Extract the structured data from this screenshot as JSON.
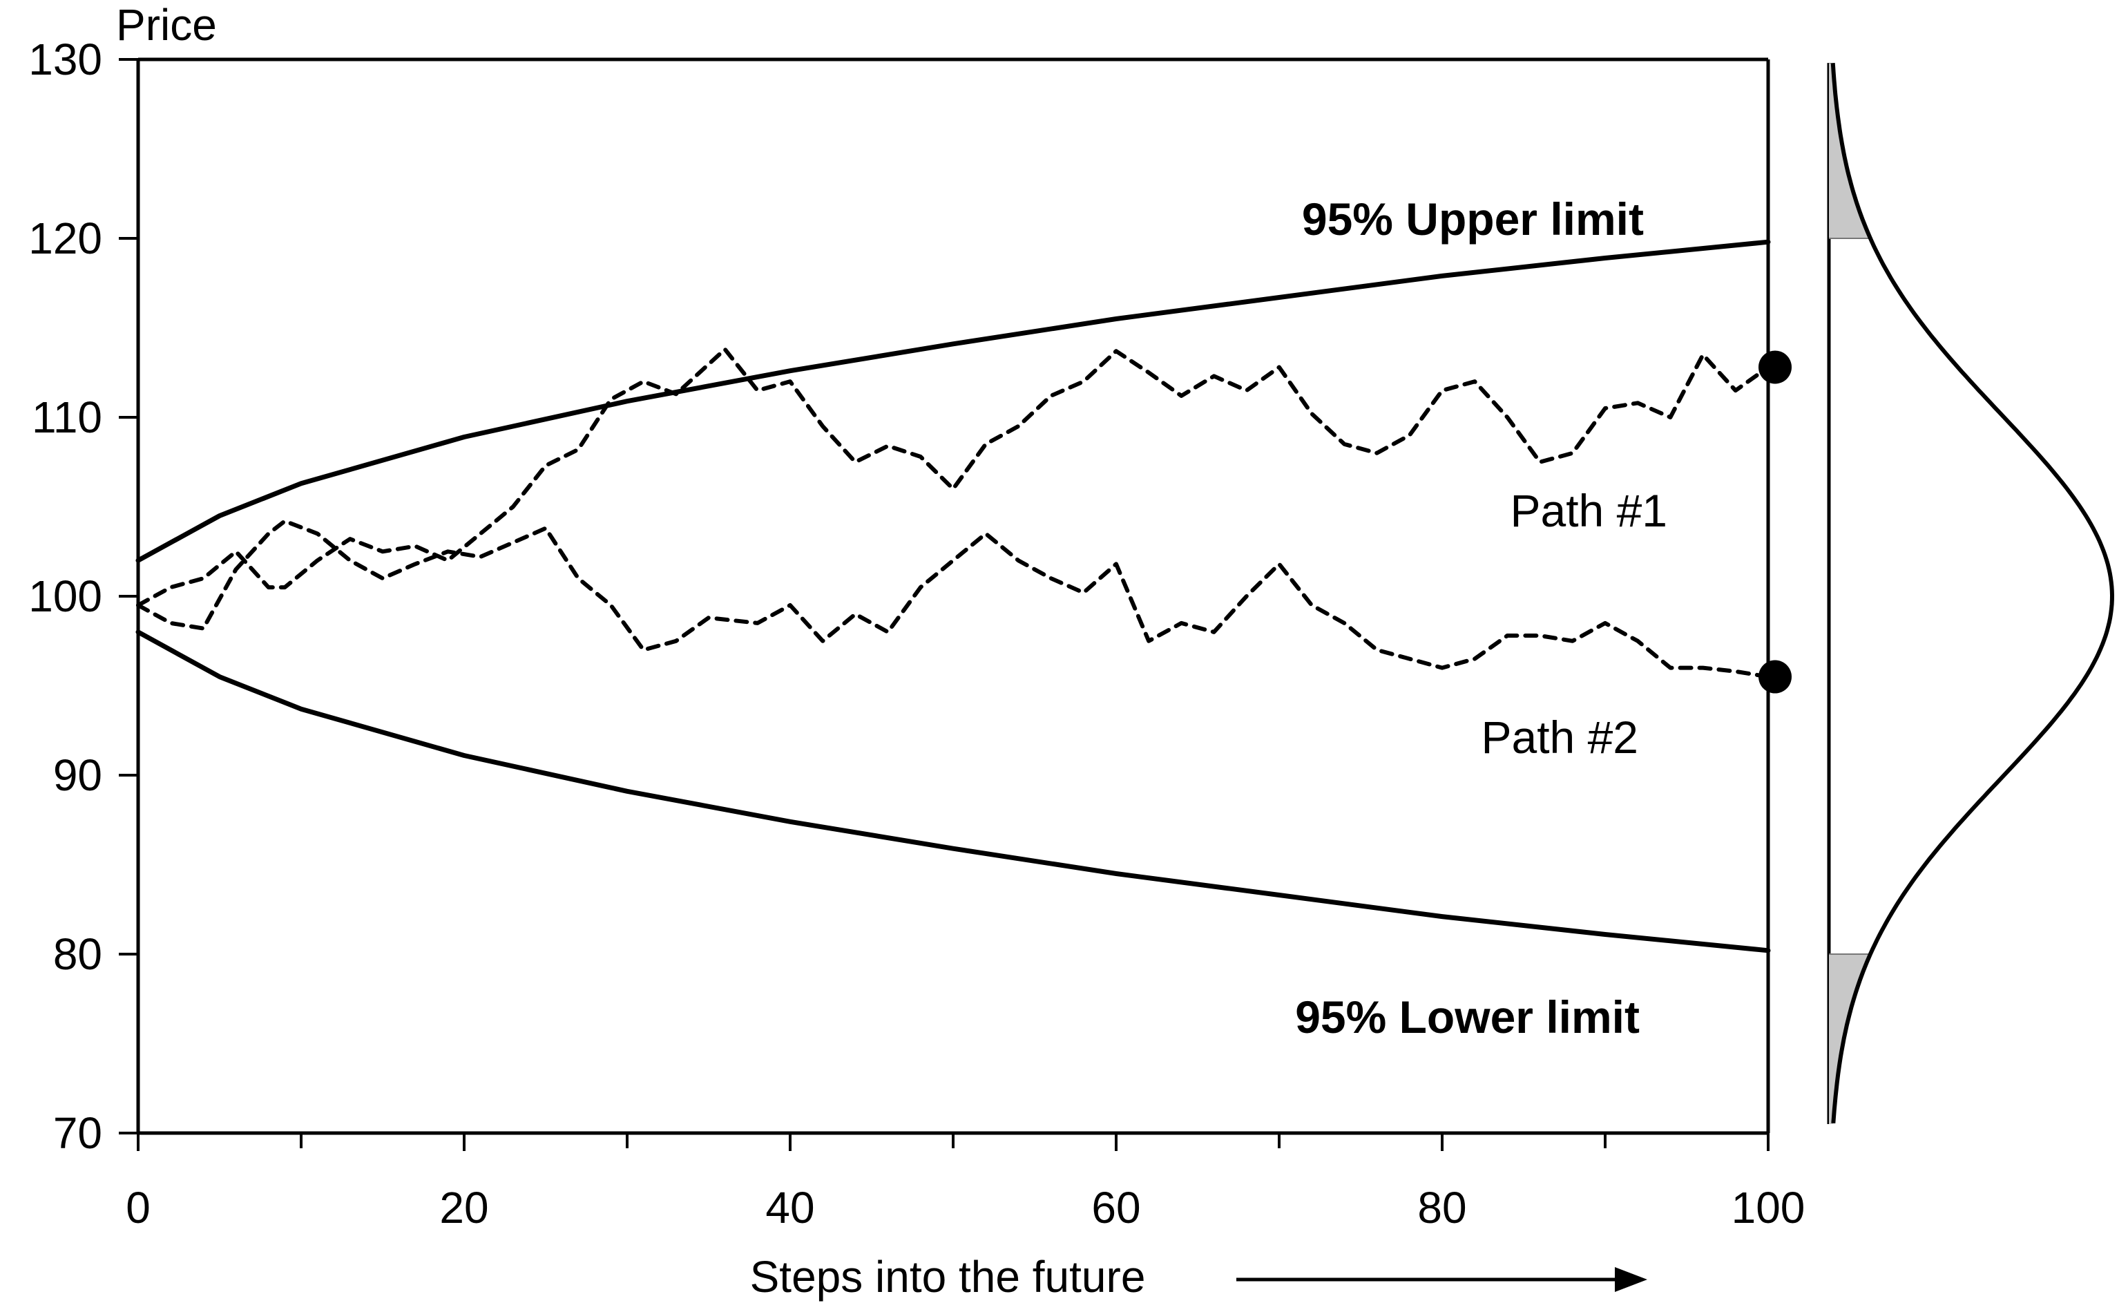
{
  "chart_data": {
    "type": "line",
    "xlabel": "Steps into the future",
    "ylabel": "Price",
    "xlim": [
      0,
      100
    ],
    "ylim": [
      70,
      130
    ],
    "x_ticks": [
      0,
      20,
      40,
      60,
      80,
      100
    ],
    "y_ticks": [
      70,
      80,
      90,
      100,
      110,
      120,
      130
    ],
    "x_tick_labels": [
      "0",
      "20",
      "40",
      "60",
      "80",
      "100"
    ],
    "y_tick_labels": [
      "70",
      "80",
      "90",
      "100",
      "110",
      "120",
      "130"
    ],
    "grid": false,
    "annotations": {
      "upper": "95% Upper limit",
      "lower": "95% Lower limit",
      "path1": "Path #1",
      "path2": "Path #2"
    },
    "series": [
      {
        "name": "95% Upper limit",
        "style": "solid",
        "x": [
          0,
          5,
          10,
          20,
          30,
          40,
          50,
          60,
          70,
          80,
          90,
          100
        ],
        "values": [
          102,
          104.5,
          106.3,
          108.9,
          110.9,
          112.6,
          114.1,
          115.5,
          116.7,
          117.9,
          118.9,
          119.8
        ]
      },
      {
        "name": "95% Lower limit",
        "style": "solid",
        "x": [
          0,
          5,
          10,
          20,
          30,
          40,
          50,
          60,
          70,
          80,
          90,
          100
        ],
        "values": [
          98,
          95.5,
          93.7,
          91.1,
          89.1,
          87.4,
          85.9,
          84.5,
          83.3,
          82.1,
          81.1,
          80.2
        ]
      },
      {
        "name": "Path #1",
        "style": "dashed",
        "end_marker": true,
        "x": [
          0,
          2,
          4,
          6,
          8,
          9,
          11,
          13,
          15,
          17,
          19,
          21,
          23,
          25,
          27,
          29,
          31,
          33,
          36,
          38,
          40,
          42,
          44,
          46,
          48,
          50,
          52,
          54,
          56,
          58,
          60,
          62,
          64,
          66,
          68,
          70,
          72,
          74,
          76,
          78,
          80,
          82,
          84,
          86,
          88,
          90,
          92,
          94,
          96,
          98,
          100
        ],
        "values": [
          99.5,
          100.5,
          101,
          102.5,
          100.5,
          100.5,
          102,
          103.2,
          102.5,
          102.8,
          102,
          103.5,
          105,
          107.3,
          108.2,
          111,
          112,
          111.3,
          113.8,
          111.5,
          112,
          109.5,
          107.5,
          108.4,
          107.8,
          106,
          108.5,
          109.5,
          111.2,
          112,
          113.7,
          112.5,
          111.2,
          112.3,
          111.5,
          112.8,
          110.2,
          108.5,
          108,
          109,
          111.5,
          112,
          110,
          107.5,
          108,
          110.5,
          110.8,
          110,
          113.5,
          111.5,
          112.8
        ]
      },
      {
        "name": "Path #2",
        "style": "dashed",
        "end_marker": true,
        "x": [
          0,
          2,
          4,
          6,
          8,
          9,
          11,
          13,
          15,
          17,
          19,
          21,
          23,
          25,
          27,
          29,
          31,
          33,
          35,
          38,
          40,
          42,
          44,
          46,
          48,
          50,
          52,
          54,
          56,
          58,
          60,
          62,
          64,
          66,
          68,
          70,
          72,
          74,
          76,
          78,
          80,
          82,
          84,
          86,
          88,
          90,
          92,
          94,
          96,
          98,
          100
        ],
        "values": [
          99.5,
          98.5,
          98.2,
          101.5,
          103.5,
          104.2,
          103.5,
          102,
          101,
          101.8,
          102.5,
          102.2,
          103,
          103.8,
          101,
          99.5,
          97,
          97.5,
          98.8,
          98.5,
          99.5,
          97.5,
          99,
          98,
          100.5,
          102,
          103.5,
          102,
          101,
          100.2,
          101.8,
          97.5,
          98.5,
          98,
          100,
          101.8,
          99.5,
          98.5,
          97,
          96.5,
          96,
          96.5,
          97.8,
          97.8,
          97.5,
          98.5,
          97.5,
          96,
          96,
          95.8,
          95.5
        ]
      }
    ],
    "marginal_distribution": {
      "type": "normal",
      "mean": 100,
      "shaded_tails": [
        "above 120",
        "below 80"
      ]
    }
  }
}
